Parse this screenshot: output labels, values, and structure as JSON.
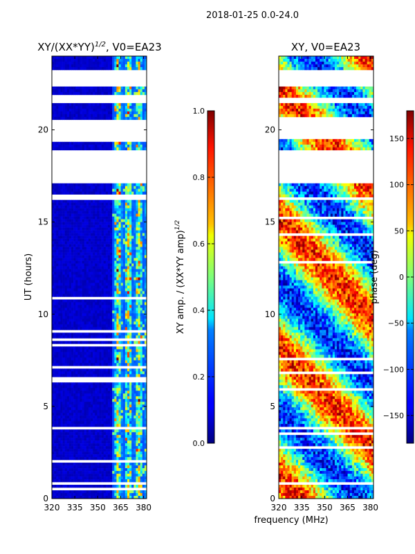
{
  "suptitle": "2018-01-25 0.0-24.0",
  "chart_data": [
    {
      "type": "heatmap",
      "title_main": "XY/(XX*YY)",
      "title_sup": "1/2",
      "title_tail": ", V0=EA23",
      "xlabel": "",
      "ylabel": "UT (hours)",
      "xlim": [
        320,
        382
      ],
      "ylim": [
        0,
        24
      ],
      "xticks": [
        320,
        335,
        350,
        365,
        380
      ],
      "yticks": [
        0,
        5,
        10,
        15,
        20
      ],
      "bright_freq_range": [
        359,
        382
      ],
      "gaps_hours": [
        [
          19.5,
          20.6
        ],
        [
          17.1,
          18.9
        ],
        [
          21.4,
          21.7
        ],
        [
          22.4,
          23.3
        ],
        [
          0.25,
          0.35
        ],
        [
          0.8,
          0.95
        ],
        [
          3.7,
          3.85
        ],
        [
          16.2,
          16.4
        ]
      ],
      "colorbar": {
        "label_main": "XY amp. / (XX*YY amp)",
        "label_sup": "1/2",
        "vmin": 0.0,
        "vmax": 1.0,
        "ticks": [
          "0.0",
          "0.2",
          "0.4",
          "0.6",
          "0.8",
          "1.0"
        ],
        "tick_values": [
          0.0,
          0.2,
          0.4,
          0.6,
          0.8,
          1.0
        ]
      }
    },
    {
      "type": "heatmap",
      "title_main": "XY, V0=EA23",
      "xlabel": "frequency (MHz)",
      "ylabel": "",
      "xlim": [
        320,
        382
      ],
      "ylim": [
        0,
        24
      ],
      "xticks": [
        320,
        335,
        350,
        365,
        380
      ],
      "yticks": [
        0,
        5,
        10,
        15,
        20
      ],
      "gaps_hours": [
        [
          19.5,
          20.6
        ],
        [
          17.1,
          18.9
        ],
        [
          21.4,
          21.7
        ],
        [
          22.4,
          23.3
        ],
        [
          0.25,
          0.35
        ],
        [
          0.8,
          0.95
        ],
        [
          3.7,
          3.85
        ],
        [
          16.2,
          16.4
        ]
      ],
      "colorbar": {
        "label_main": "phase (deg)",
        "vmin": -180,
        "vmax": 180,
        "ticks": [
          "150",
          "100",
          "50",
          "0",
          "−50",
          "−100",
          "−150"
        ],
        "tick_values": [
          150,
          100,
          50,
          0,
          -50,
          -100,
          -150
        ]
      }
    }
  ]
}
